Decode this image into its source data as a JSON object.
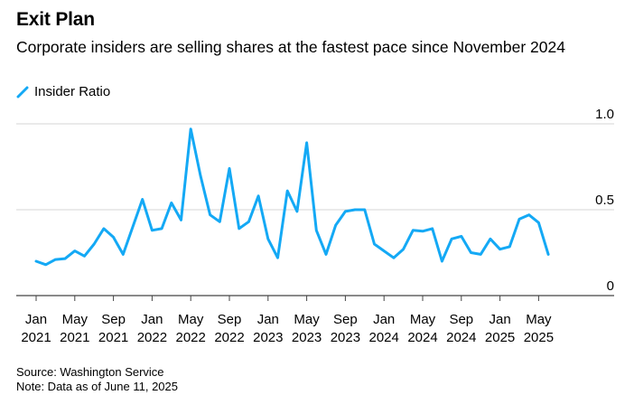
{
  "header": {
    "title": "Exit Plan",
    "subtitle": "Corporate insiders are selling shares at the fastest pace since November 2024"
  },
  "legend": {
    "label": "Insider Ratio",
    "color": "#14a9f5"
  },
  "footer": {
    "source": "Source: Washington Service",
    "note": "Note: Data as of June 11, 2025"
  },
  "chart_data": {
    "type": "line",
    "title": "Exit Plan",
    "subtitle": "Corporate insiders are selling shares at the fastest pace since November 2024",
    "x_start": "2021-01",
    "x_ticks": [
      {
        "month": "Jan",
        "year": "2021"
      },
      {
        "month": "May",
        "year": "2021"
      },
      {
        "month": "Sep",
        "year": "2021"
      },
      {
        "month": "Jan",
        "year": "2022"
      },
      {
        "month": "May",
        "year": "2022"
      },
      {
        "month": "Sep",
        "year": "2022"
      },
      {
        "month": "Jan",
        "year": "2023"
      },
      {
        "month": "May",
        "year": "2023"
      },
      {
        "month": "Sep",
        "year": "2023"
      },
      {
        "month": "Jan",
        "year": "2024"
      },
      {
        "month": "May",
        "year": "2024"
      },
      {
        "month": "Sep",
        "year": "2024"
      },
      {
        "month": "Jan",
        "year": "2025"
      },
      {
        "month": "May",
        "year": "2025"
      }
    ],
    "y_ticks": [
      "0",
      "0.5",
      "1.0"
    ],
    "ylim": [
      0,
      1.0
    ],
    "grid": true,
    "legend_position": "top-left",
    "series": [
      {
        "name": "Insider Ratio",
        "color": "#14a9f5",
        "x": [
          "2021-01",
          "2021-02",
          "2021-03",
          "2021-04",
          "2021-05",
          "2021-06",
          "2021-07",
          "2021-08",
          "2021-09",
          "2021-10",
          "2021-11",
          "2021-12",
          "2022-01",
          "2022-02",
          "2022-03",
          "2022-04",
          "2022-05",
          "2022-06",
          "2022-07",
          "2022-08",
          "2022-09",
          "2022-10",
          "2022-11",
          "2022-12",
          "2023-01",
          "2023-02",
          "2023-03",
          "2023-04",
          "2023-05",
          "2023-06",
          "2023-07",
          "2023-08",
          "2023-09",
          "2023-10",
          "2023-11",
          "2023-12",
          "2024-01",
          "2024-02",
          "2024-03",
          "2024-04",
          "2024-05",
          "2024-06",
          "2024-07",
          "2024-08",
          "2024-09",
          "2024-10",
          "2024-11",
          "2024-12",
          "2025-01",
          "2025-02",
          "2025-03",
          "2025-04",
          "2025-05",
          "2025-06"
        ],
        "values": [
          0.2,
          0.18,
          0.21,
          0.215,
          0.26,
          0.23,
          0.3,
          0.39,
          0.34,
          0.24,
          0.4,
          0.56,
          0.38,
          0.39,
          0.54,
          0.44,
          0.97,
          0.7,
          0.47,
          0.43,
          0.74,
          0.39,
          0.43,
          0.58,
          0.33,
          0.22,
          0.61,
          0.49,
          0.89,
          0.38,
          0.24,
          0.41,
          0.49,
          0.5,
          0.5,
          0.3,
          0.26,
          0.22,
          0.27,
          0.38,
          0.375,
          0.39,
          0.2,
          0.33,
          0.345,
          0.25,
          0.24,
          0.33,
          0.27,
          0.285,
          0.445,
          0.47,
          0.425,
          0.24
        ]
      }
    ]
  }
}
